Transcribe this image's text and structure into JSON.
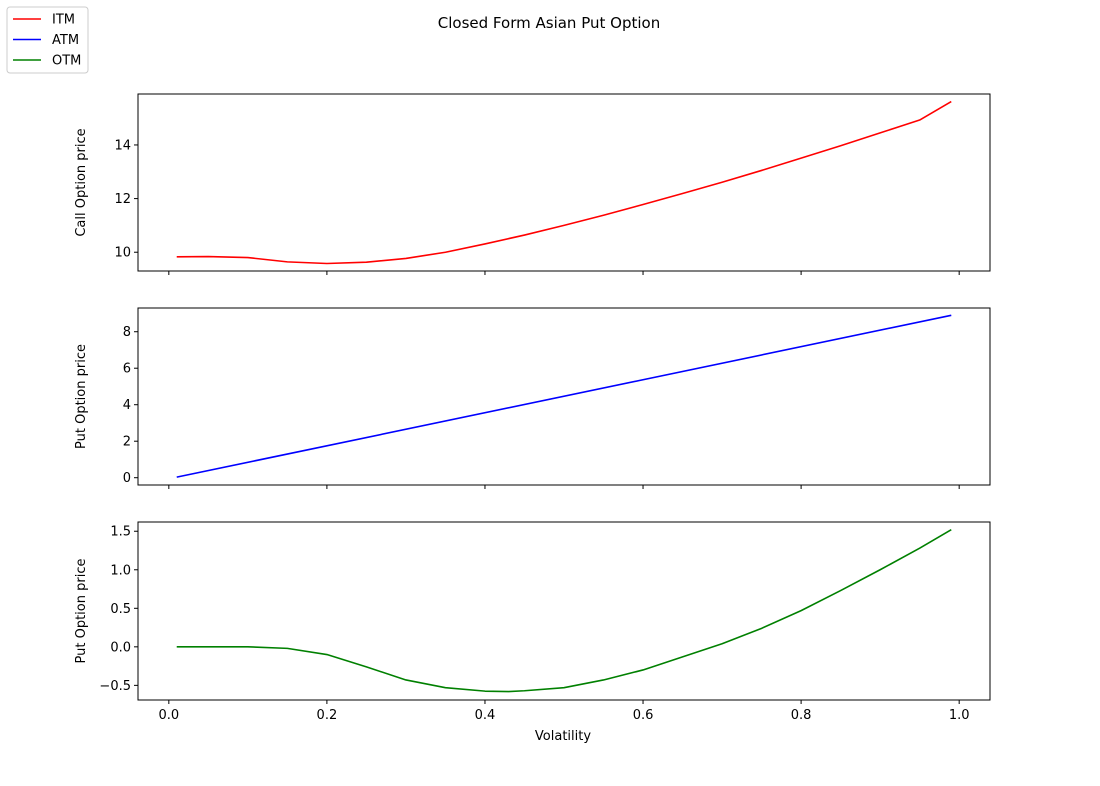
{
  "figure": {
    "title": "Closed Form Asian Put Option",
    "legend": {
      "placement": "top-left",
      "entries": [
        {
          "label": "ITM",
          "color": "#ff0000"
        },
        {
          "label": "ATM",
          "color": "#0000ff"
        },
        {
          "label": "OTM",
          "color": "#008000"
        }
      ]
    }
  },
  "chart_data": [
    {
      "type": "line",
      "title": "",
      "xlabel": "",
      "ylabel": "Call Option price",
      "xlim": [
        -0.039,
        1.039
      ],
      "ylim": [
        9.3,
        15.9
      ],
      "xticks": [
        0.0,
        0.2,
        0.4,
        0.6,
        0.8,
        1.0
      ],
      "xtick_labels_visible": false,
      "yticks": [
        10,
        12,
        14
      ],
      "ytick_labels": [
        "10",
        "12",
        "14"
      ],
      "grid": false,
      "series": [
        {
          "name": "ITM",
          "color": "#ff0000",
          "x": [
            0.01,
            0.05,
            0.1,
            0.15,
            0.2,
            0.25,
            0.3,
            0.35,
            0.4,
            0.45,
            0.5,
            0.55,
            0.6,
            0.65,
            0.7,
            0.75,
            0.8,
            0.85,
            0.9,
            0.95,
            0.99
          ],
          "y": [
            9.83,
            9.84,
            9.8,
            9.64,
            9.58,
            9.63,
            9.77,
            10.0,
            10.31,
            10.64,
            11.0,
            11.38,
            11.78,
            12.19,
            12.61,
            13.05,
            13.51,
            13.97,
            14.45,
            14.93,
            15.62
          ]
        }
      ]
    },
    {
      "type": "line",
      "title": "",
      "xlabel": "",
      "ylabel": "Put Option price",
      "xlim": [
        -0.039,
        1.039
      ],
      "ylim": [
        -0.4,
        9.3
      ],
      "xticks": [
        0.0,
        0.2,
        0.4,
        0.6,
        0.8,
        1.0
      ],
      "xtick_labels_visible": false,
      "yticks": [
        0,
        2,
        4,
        6,
        8
      ],
      "ytick_labels": [
        "0",
        "2",
        "4",
        "6",
        "8"
      ],
      "grid": false,
      "series": [
        {
          "name": "ATM",
          "color": "#0000ff",
          "x": [
            0.01,
            0.99
          ],
          "y": [
            0.03,
            8.9
          ]
        }
      ]
    },
    {
      "type": "line",
      "title": "",
      "xlabel": "Volatility",
      "ylabel": "Put Option price",
      "xlim": [
        -0.039,
        1.039
      ],
      "ylim": [
        -0.69,
        1.62
      ],
      "xticks": [
        0.0,
        0.2,
        0.4,
        0.6,
        0.8,
        1.0
      ],
      "xtick_labels": [
        "0.0",
        "0.2",
        "0.4",
        "0.6",
        "0.8",
        "1.0"
      ],
      "yticks": [
        -0.5,
        0.0,
        0.5,
        1.0,
        1.5
      ],
      "ytick_labels": [
        "−0.5",
        "0.0",
        "0.5",
        "1.0",
        "1.5"
      ],
      "grid": false,
      "series": [
        {
          "name": "OTM",
          "color": "#008000",
          "x": [
            0.01,
            0.05,
            0.1,
            0.15,
            0.2,
            0.25,
            0.3,
            0.35,
            0.4,
            0.43,
            0.45,
            0.5,
            0.55,
            0.6,
            0.65,
            0.7,
            0.75,
            0.8,
            0.85,
            0.9,
            0.95,
            0.99
          ],
          "y": [
            0.0,
            0.0,
            0.0,
            -0.02,
            -0.1,
            -0.26,
            -0.43,
            -0.53,
            -0.575,
            -0.58,
            -0.57,
            -0.53,
            -0.43,
            -0.3,
            -0.13,
            0.04,
            0.24,
            0.47,
            0.73,
            1.0,
            1.28,
            1.52
          ]
        }
      ]
    }
  ]
}
